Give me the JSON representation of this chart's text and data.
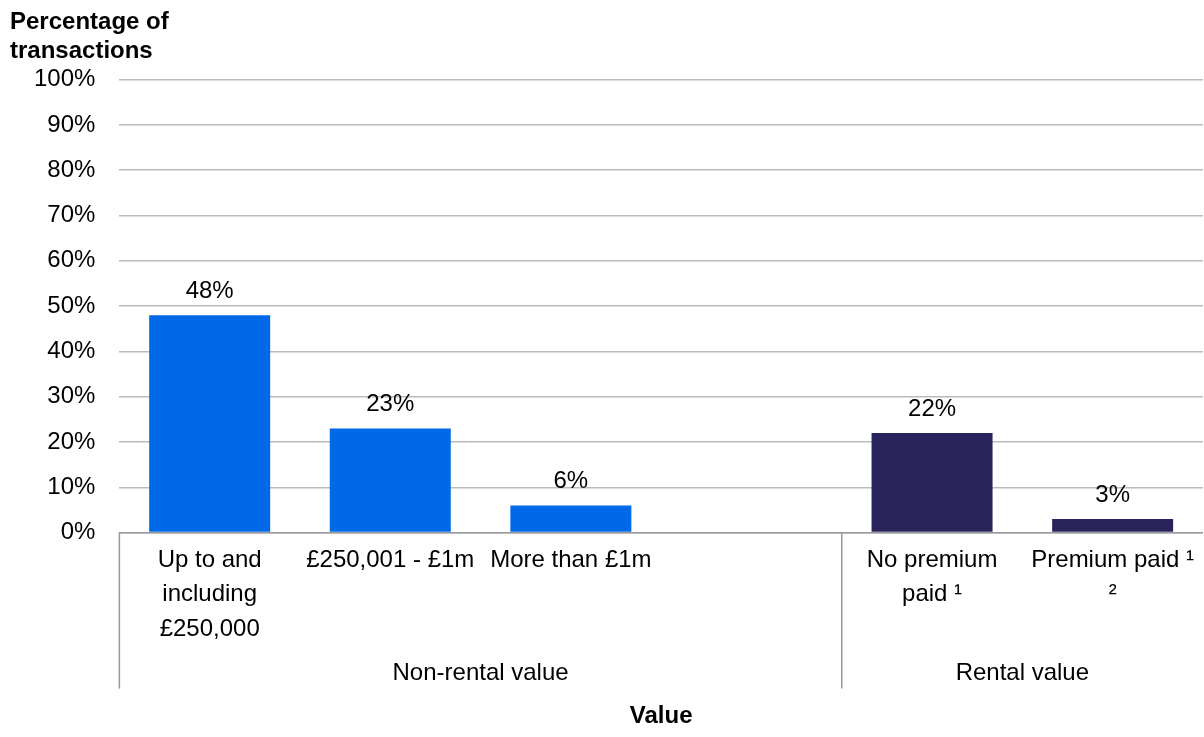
{
  "chart_data": {
    "type": "bar",
    "ylabel": "Percentage of transactions",
    "xlabel": "Value",
    "categories": [
      "Up to and including £250,000",
      "£250,001 - £1m",
      "More than £1m",
      null,
      "No premium paid ¹",
      "Premium paid ¹ ²"
    ],
    "values": [
      48,
      23,
      6,
      null,
      22,
      3
    ],
    "colors": [
      "#0069e8",
      "#0069e8",
      "#0069e8",
      "#0069e8",
      "#29235c",
      "#29235c"
    ],
    "value_labels": [
      "48%",
      "23%",
      "6%",
      null,
      "22%",
      "3%"
    ],
    "ylim": [
      0,
      100
    ],
    "yticks": [
      {
        "value": 0,
        "label": "0%"
      },
      {
        "value": 10,
        "label": "10%"
      },
      {
        "value": 20,
        "label": "20%"
      },
      {
        "value": 30,
        "label": "30%"
      },
      {
        "value": 40,
        "label": "40%"
      },
      {
        "value": 50,
        "label": "50%"
      },
      {
        "value": 60,
        "label": "60%"
      },
      {
        "value": 70,
        "label": "70%"
      },
      {
        "value": 80,
        "label": "80%"
      },
      {
        "value": 90,
        "label": "90%"
      },
      {
        "value": 100,
        "label": "100%"
      }
    ],
    "grid": "y",
    "annotations": [
      "Non-rental value",
      "Rental value"
    ]
  }
}
